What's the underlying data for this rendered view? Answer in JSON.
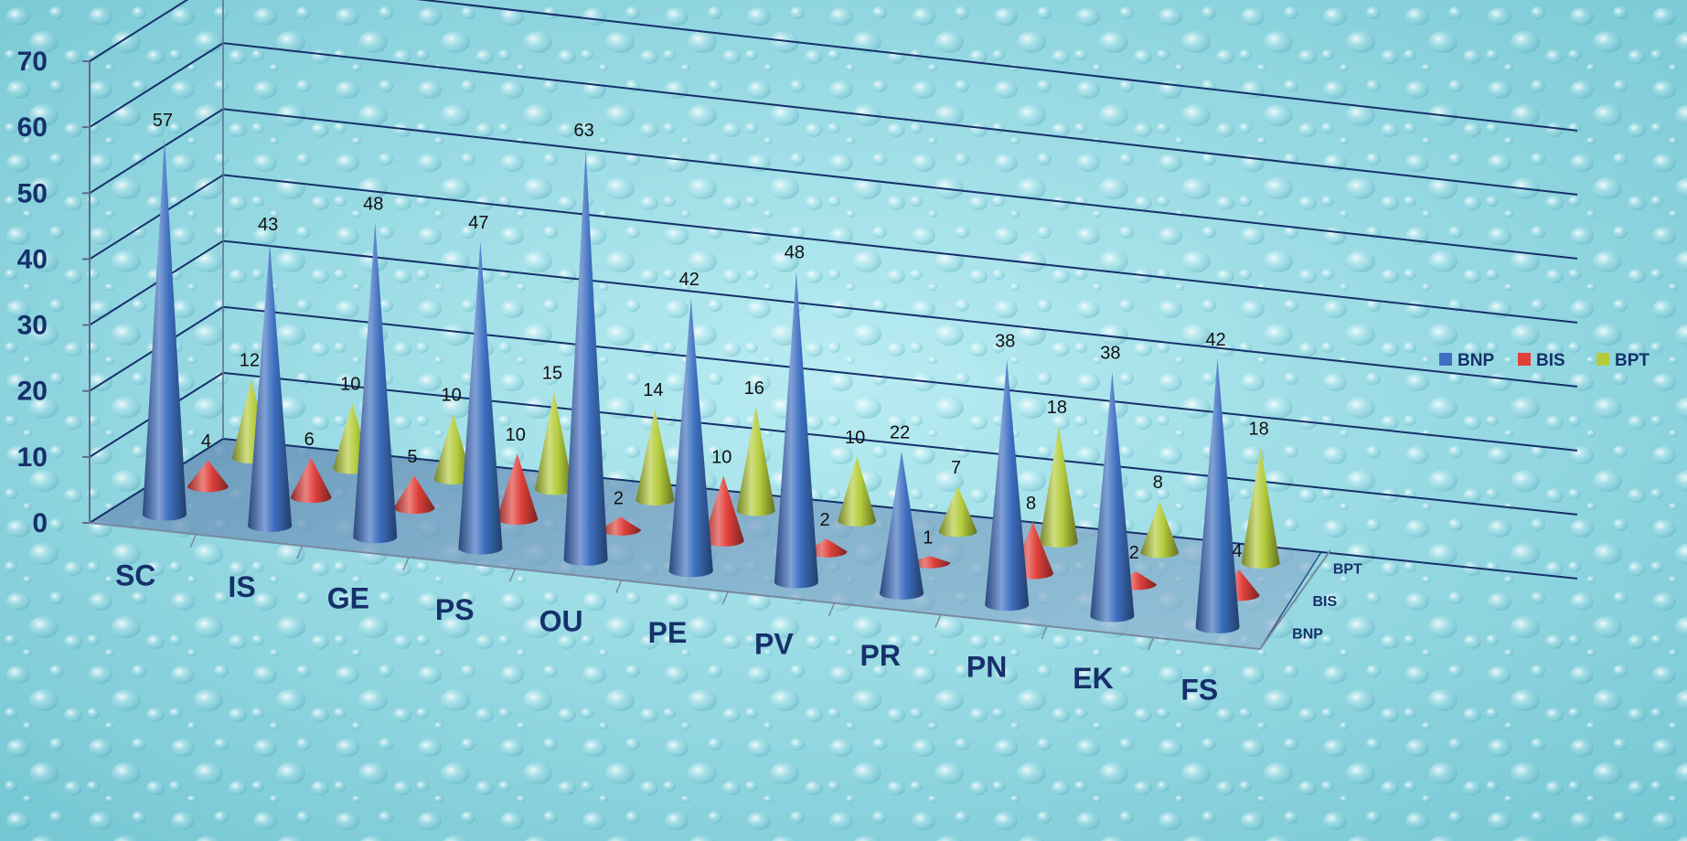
{
  "chart_data": {
    "type": "bar",
    "style": "3d-cone",
    "categories": [
      "SC",
      "IS",
      "GE",
      "PS",
      "OU",
      "PE",
      "PV",
      "PR",
      "PN",
      "EK",
      "FS"
    ],
    "series": [
      {
        "name": "BNP",
        "color": "#3d6fc0",
        "values": [
          57,
          43,
          48,
          47,
          63,
          42,
          48,
          22,
          38,
          38,
          42
        ]
      },
      {
        "name": "BIS",
        "color": "#e0403b",
        "values": [
          4,
          6,
          5,
          10,
          2,
          10,
          2,
          1,
          8,
          2,
          4
        ]
      },
      {
        "name": "BPT",
        "color": "#b4cc3c",
        "values": [
          12,
          10,
          10,
          15,
          14,
          16,
          10,
          7,
          18,
          8,
          18
        ]
      }
    ],
    "y_ticks": [
      "0",
      "10",
      "20",
      "30",
      "40",
      "50",
      "60",
      "70"
    ],
    "ylim": [
      0,
      70
    ],
    "depth_labels": [
      "BNP",
      "BIS",
      "BPT"
    ],
    "legend": {
      "position": "right",
      "entries": [
        "BNP",
        "BIS",
        "BPT"
      ]
    },
    "grid": true,
    "data_labels": true,
    "background": "water-drops",
    "title": "",
    "xlabel": "",
    "ylabel": ""
  }
}
